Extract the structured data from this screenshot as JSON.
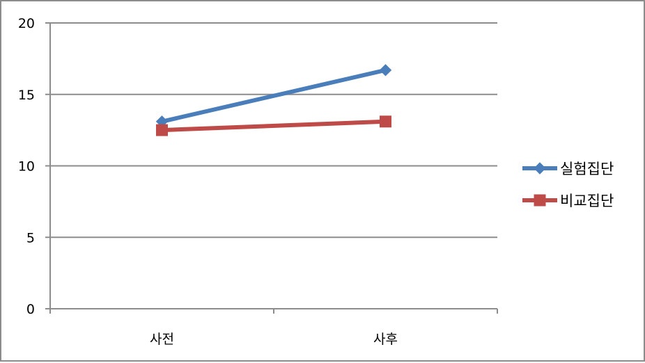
{
  "chart_data": {
    "type": "line",
    "categories": [
      "사전",
      "사후"
    ],
    "series": [
      {
        "name": "실험집단",
        "values": [
          13.1,
          16.7
        ],
        "color": "#4a7ebb",
        "marker": "diamond"
      },
      {
        "name": "비교집단",
        "values": [
          12.5,
          13.1
        ],
        "color": "#be4b48",
        "marker": "square"
      }
    ],
    "ylim": [
      0,
      20
    ],
    "yticks": [
      0,
      5,
      10,
      15,
      20
    ],
    "ytick_labels": [
      "0",
      "5",
      "10",
      "15",
      "20"
    ],
    "grid": true,
    "legend_position": "right"
  }
}
